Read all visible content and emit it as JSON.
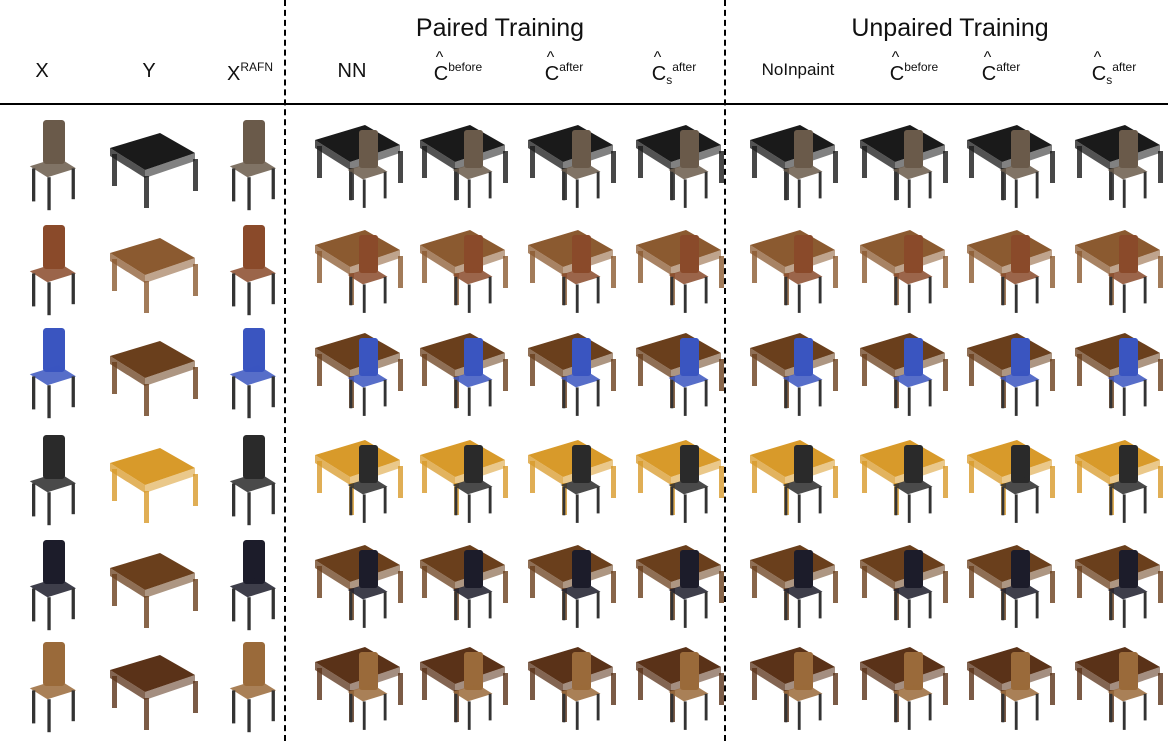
{
  "groups": {
    "paired": "Paired Training",
    "unpaired": "Unpaired Training"
  },
  "columns": {
    "x": "X",
    "y": "Y",
    "xrafn_base": "X",
    "xrafn_sup": "RAFN",
    "nn": "NN",
    "c_base": "C",
    "before_sup": "before",
    "after_sup": "after",
    "s_sub": "s",
    "noinpaint": "NoInpaint"
  },
  "rows": [
    {
      "chair": "folding-chair",
      "table": "black-table",
      "chair_color": "#6a5a4a",
      "table_color": "#1a1a1a"
    },
    {
      "chair": "armchair",
      "table": "wood-table",
      "chair_color": "#8a4a2a",
      "table_color": "#8b5a30"
    },
    {
      "chair": "blue-chair",
      "table": "wood-table",
      "chair_color": "#3a55c0",
      "table_color": "#6a3f1c"
    },
    {
      "chair": "black-chair",
      "table": "yellow-table",
      "chair_color": "#2a2a2a",
      "table_color": "#d89a2a"
    },
    {
      "chair": "office-chair",
      "table": "wood-desk",
      "chair_color": "#1c1c2a",
      "table_color": "#6a3f1c"
    },
    {
      "chair": "wood-chair",
      "table": "wood-coffee-table",
      "chair_color": "#9a6a3a",
      "table_color": "#5a3218"
    }
  ]
}
